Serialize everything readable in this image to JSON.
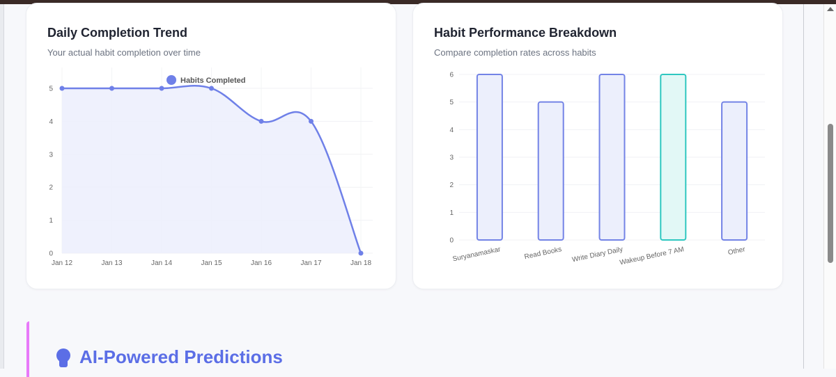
{
  "trend_card": {
    "title": "Daily Completion Trend",
    "subtitle": "Your actual habit completion over time"
  },
  "breakdown_card": {
    "title": "Habit Performance Breakdown",
    "subtitle": "Compare completion rates across habits"
  },
  "ai_section": {
    "title": "AI-Powered Predictions",
    "icon": "brain-icon"
  },
  "colors": {
    "line": "#6f80e8",
    "area_fill": "#eceffd",
    "bar_fill": "#eceffc",
    "bar_stroke": "#7383e6",
    "highlight_fill": "#e2f8f6",
    "highlight_stroke": "#2ec7c0",
    "ai_title": "#5b6ee6",
    "accent": "#e879f9"
  },
  "chart_data": [
    {
      "type": "line",
      "title": "Daily Completion Trend",
      "x": [
        "Jan 12",
        "Jan 13",
        "Jan 14",
        "Jan 15",
        "Jan 16",
        "Jan 17",
        "Jan 18"
      ],
      "series": [
        {
          "name": "Habits Completed",
          "values": [
            5,
            5,
            5,
            5,
            4,
            4,
            0
          ]
        }
      ],
      "ylim": [
        0,
        5
      ],
      "yticks": [
        0,
        1,
        2,
        3,
        4,
        5
      ],
      "legend": "top",
      "grid": true
    },
    {
      "type": "bar",
      "title": "Habit Performance Breakdown",
      "categories": [
        "Suryanamaskar",
        "Read Books",
        "Write Diary Daily",
        "Wakeup Before 7 AM",
        "Other"
      ],
      "values": [
        6,
        5,
        6,
        6,
        5
      ],
      "highlighted": "Wakeup Before 7 AM",
      "ylim": [
        0,
        6
      ],
      "yticks": [
        0,
        1,
        2,
        3,
        4,
        5,
        6
      ],
      "grid": true
    }
  ]
}
